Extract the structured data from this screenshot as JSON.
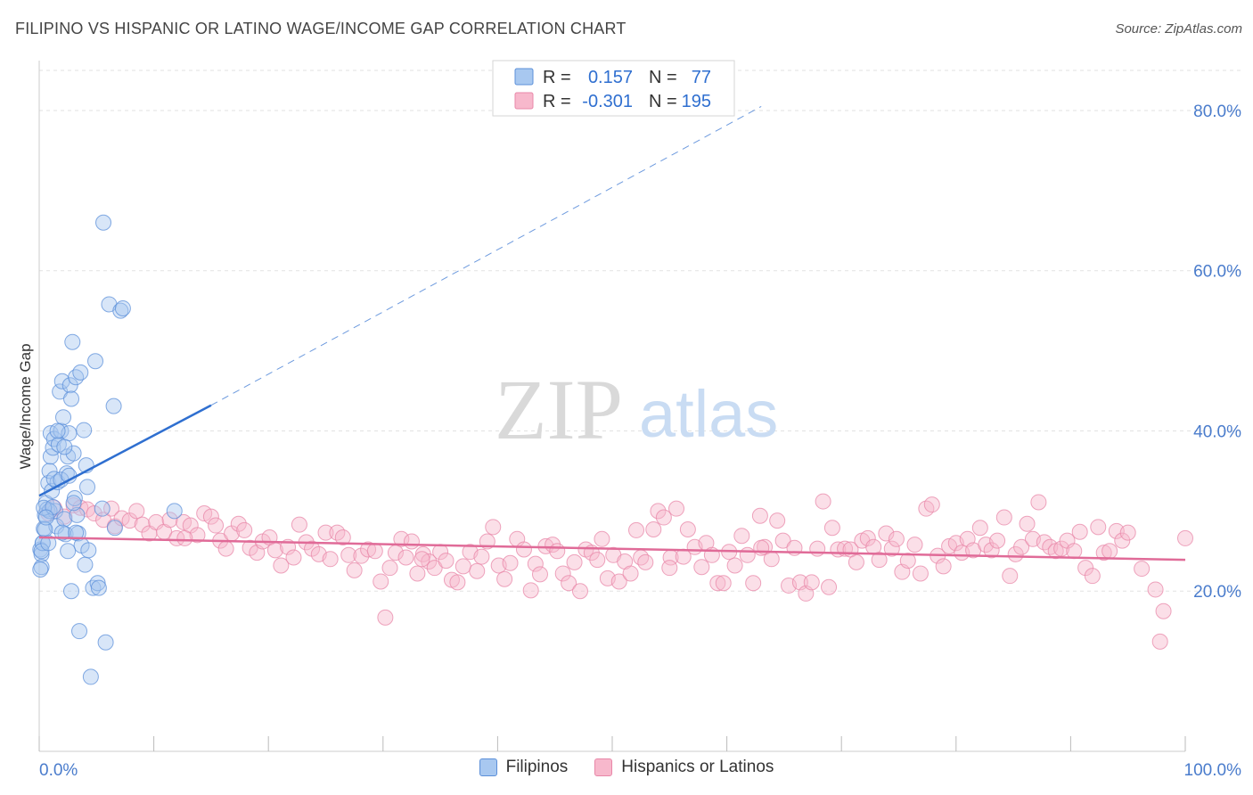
{
  "title": "FILIPINO VS HISPANIC OR LATINO WAGE/INCOME GAP CORRELATION CHART",
  "source": "Source: ZipAtlas.com",
  "watermark": {
    "zip": "ZIP",
    "atlas": "atlas"
  },
  "colors": {
    "blue_fill": "#a8c8f0",
    "blue_stroke": "#5b8fd9",
    "blue_line": "#2f6fd0",
    "pink_fill": "#f7b8cc",
    "pink_stroke": "#e887a8",
    "pink_line": "#e06b98",
    "axis_text": "#4a7ccc"
  },
  "chart_data": {
    "type": "scatter",
    "title": "FILIPINO VS HISPANIC OR LATINO WAGE/INCOME GAP CORRELATION CHART",
    "xlabel": "",
    "ylabel": "Wage/Income Gap",
    "xlim": [
      0,
      100
    ],
    "ylim": [
      0,
      85
    ],
    "x_tick_labels": [
      "0.0%",
      "100.0%"
    ],
    "y_ticks": [
      20,
      40,
      60,
      80
    ],
    "y_tick_labels": [
      "20.0%",
      "40.0%",
      "60.0%",
      "80.0%"
    ],
    "grid": true,
    "legend_placement": "top-center",
    "stats": [
      {
        "r_label": "R =",
        "r": "0.157",
        "n_label": "N =",
        "n": "77"
      },
      {
        "r_label": "R =",
        "r": "-0.301",
        "n_label": "N =",
        "n": "195"
      }
    ],
    "series": [
      {
        "name": "Filipinos",
        "color": "#5b8fd9",
        "trend": {
          "x0": 0,
          "y0": 31.9,
          "x1": 15,
          "y1": 43.2,
          "dashed_to_x": 63,
          "dashed_to_y": 80.5
        },
        "points": [
          [
            0.1,
            25.2
          ],
          [
            0.2,
            24.6
          ],
          [
            0.3,
            26.0
          ],
          [
            0.2,
            23.0
          ],
          [
            0.4,
            27.8
          ],
          [
            0.5,
            29.5
          ],
          [
            0.6,
            31.0
          ],
          [
            0.7,
            30.2
          ],
          [
            0.8,
            33.5
          ],
          [
            0.9,
            35.0
          ],
          [
            1.0,
            36.8
          ],
          [
            1.0,
            39.7
          ],
          [
            1.1,
            32.5
          ],
          [
            1.2,
            37.9
          ],
          [
            1.3,
            39.0
          ],
          [
            1.4,
            30.0
          ],
          [
            1.5,
            28.1
          ],
          [
            1.6,
            33.6
          ],
          [
            1.7,
            38.3
          ],
          [
            1.8,
            44.9
          ],
          [
            1.9,
            40.0
          ],
          [
            2.0,
            46.2
          ],
          [
            2.1,
            41.7
          ],
          [
            2.2,
            29.0
          ],
          [
            2.3,
            27.1
          ],
          [
            2.4,
            34.7
          ],
          [
            2.5,
            36.8
          ],
          [
            2.6,
            39.7
          ],
          [
            2.7,
            45.7
          ],
          [
            2.8,
            44.0
          ],
          [
            2.9,
            51.1
          ],
          [
            3.0,
            37.2
          ],
          [
            3.1,
            31.6
          ],
          [
            3.2,
            46.7
          ],
          [
            3.3,
            29.5
          ],
          [
            3.4,
            27.2
          ],
          [
            3.5,
            15.0
          ],
          [
            3.6,
            47.3
          ],
          [
            3.7,
            25.7
          ],
          [
            3.9,
            40.1
          ],
          [
            4.0,
            23.3
          ],
          [
            4.1,
            35.7
          ],
          [
            4.2,
            33.0
          ],
          [
            4.3,
            25.1
          ],
          [
            4.5,
            9.3
          ],
          [
            4.7,
            20.4
          ],
          [
            4.9,
            48.7
          ],
          [
            5.1,
            21.0
          ],
          [
            5.2,
            20.4
          ],
          [
            5.5,
            30.3
          ],
          [
            5.6,
            66.0
          ],
          [
            5.8,
            13.6
          ],
          [
            6.1,
            55.8
          ],
          [
            6.5,
            43.1
          ],
          [
            6.6,
            27.9
          ],
          [
            7.1,
            55.0
          ],
          [
            7.3,
            55.3
          ],
          [
            0.3,
            26.0
          ],
          [
            0.5,
            27.7
          ],
          [
            0.9,
            30.0
          ],
          [
            1.3,
            34.0
          ],
          [
            1.6,
            40.0
          ],
          [
            2.0,
            27.3
          ],
          [
            2.5,
            25.0
          ],
          [
            2.8,
            20.0
          ],
          [
            3.2,
            27.3
          ],
          [
            0.2,
            25.0
          ],
          [
            0.4,
            30.4
          ],
          [
            0.8,
            26.0
          ],
          [
            1.2,
            30.5
          ],
          [
            1.9,
            33.9
          ],
          [
            2.2,
            38.0
          ],
          [
            2.6,
            34.4
          ],
          [
            3.0,
            31.0
          ],
          [
            11.8,
            30.0
          ],
          [
            0.1,
            22.7
          ],
          [
            0.6,
            29.2
          ]
        ]
      },
      {
        "name": "Hispanics or Latinos",
        "color": "#e887a8",
        "trend": {
          "x0": 0,
          "y0": 26.7,
          "x1": 100,
          "y1": 23.9
        },
        "points": [
          [
            0.8,
            29.7
          ],
          [
            1.3,
            30.4
          ],
          [
            2.2,
            29.3
          ],
          [
            3.0,
            30.7
          ],
          [
            3.6,
            30.4
          ],
          [
            4.2,
            30.2
          ],
          [
            4.8,
            29.7
          ],
          [
            5.6,
            28.9
          ],
          [
            6.3,
            30.3
          ],
          [
            6.6,
            28.1
          ],
          [
            7.2,
            29.1
          ],
          [
            7.9,
            28.8
          ],
          [
            8.5,
            30.0
          ],
          [
            9.0,
            28.3
          ],
          [
            9.6,
            27.2
          ],
          [
            10.2,
            28.6
          ],
          [
            10.9,
            27.4
          ],
          [
            11.4,
            28.9
          ],
          [
            12.0,
            26.6
          ],
          [
            12.6,
            28.6
          ],
          [
            13.2,
            28.2
          ],
          [
            13.8,
            27.0
          ],
          [
            14.4,
            29.7
          ],
          [
            15.0,
            29.3
          ],
          [
            15.4,
            28.2
          ],
          [
            15.8,
            26.3
          ],
          [
            16.3,
            25.3
          ],
          [
            16.8,
            27.2
          ],
          [
            17.4,
            28.4
          ],
          [
            17.9,
            27.6
          ],
          [
            18.4,
            25.4
          ],
          [
            19.0,
            24.8
          ],
          [
            19.5,
            26.2
          ],
          [
            20.1,
            26.7
          ],
          [
            20.6,
            25.1
          ],
          [
            21.1,
            23.2
          ],
          [
            21.7,
            25.5
          ],
          [
            22.2,
            24.2
          ],
          [
            22.7,
            28.3
          ],
          [
            23.3,
            26.1
          ],
          [
            23.8,
            25.3
          ],
          [
            24.4,
            24.6
          ],
          [
            25.0,
            27.3
          ],
          [
            25.4,
            24.0
          ],
          [
            26.0,
            27.3
          ],
          [
            26.5,
            26.7
          ],
          [
            27.0,
            24.5
          ],
          [
            27.5,
            22.6
          ],
          [
            28.1,
            24.4
          ],
          [
            28.7,
            25.2
          ],
          [
            29.3,
            25.0
          ],
          [
            29.8,
            21.2
          ],
          [
            30.2,
            16.7
          ],
          [
            30.6,
            22.9
          ],
          [
            31.1,
            24.8
          ],
          [
            31.6,
            26.5
          ],
          [
            32.0,
            24.2
          ],
          [
            32.5,
            26.2
          ],
          [
            33.0,
            22.2
          ],
          [
            33.5,
            24.6
          ],
          [
            34.0,
            23.7
          ],
          [
            34.5,
            22.9
          ],
          [
            35.0,
            24.9
          ],
          [
            35.5,
            23.8
          ],
          [
            36.0,
            21.4
          ],
          [
            36.5,
            21.1
          ],
          [
            37.0,
            23.1
          ],
          [
            37.6,
            24.9
          ],
          [
            38.2,
            22.5
          ],
          [
            38.6,
            24.3
          ],
          [
            39.1,
            26.2
          ],
          [
            39.6,
            28.0
          ],
          [
            40.1,
            23.2
          ],
          [
            40.6,
            21.5
          ],
          [
            41.1,
            23.5
          ],
          [
            41.7,
            26.5
          ],
          [
            42.3,
            25.2
          ],
          [
            42.9,
            20.1
          ],
          [
            43.3,
            23.4
          ],
          [
            43.7,
            22.1
          ],
          [
            44.2,
            25.6
          ],
          [
            44.8,
            25.8
          ],
          [
            45.2,
            25.0
          ],
          [
            45.7,
            22.2
          ],
          [
            46.2,
            21.0
          ],
          [
            46.7,
            23.6
          ],
          [
            47.2,
            20.0
          ],
          [
            47.7,
            25.2
          ],
          [
            48.2,
            24.8
          ],
          [
            48.7,
            23.9
          ],
          [
            49.1,
            26.5
          ],
          [
            49.6,
            21.6
          ],
          [
            50.1,
            24.5
          ],
          [
            50.6,
            21.2
          ],
          [
            51.1,
            23.7
          ],
          [
            51.6,
            22.2
          ],
          [
            52.1,
            27.6
          ],
          [
            52.5,
            24.2
          ],
          [
            52.9,
            23.6
          ],
          [
            53.6,
            27.7
          ],
          [
            54.0,
            30.0
          ],
          [
            54.5,
            29.2
          ],
          [
            55.1,
            24.2
          ],
          [
            55.6,
            30.3
          ],
          [
            56.2,
            24.3
          ],
          [
            56.6,
            27.7
          ],
          [
            57.2,
            25.5
          ],
          [
            57.8,
            23.0
          ],
          [
            58.2,
            26.0
          ],
          [
            58.7,
            24.5
          ],
          [
            59.2,
            21.0
          ],
          [
            59.7,
            21.0
          ],
          [
            60.2,
            24.9
          ],
          [
            60.7,
            23.2
          ],
          [
            61.3,
            26.9
          ],
          [
            61.8,
            24.5
          ],
          [
            62.3,
            21.0
          ],
          [
            62.9,
            29.4
          ],
          [
            63.3,
            25.5
          ],
          [
            63.9,
            24.0
          ],
          [
            64.4,
            28.8
          ],
          [
            64.9,
            26.3
          ],
          [
            65.4,
            20.7
          ],
          [
            65.9,
            25.4
          ],
          [
            66.4,
            21.1
          ],
          [
            66.9,
            19.7
          ],
          [
            67.4,
            21.1
          ],
          [
            67.9,
            25.3
          ],
          [
            68.4,
            31.2
          ],
          [
            68.9,
            20.5
          ],
          [
            69.2,
            27.9
          ],
          [
            69.7,
            25.2
          ],
          [
            70.3,
            25.3
          ],
          [
            70.8,
            25.2
          ],
          [
            71.3,
            23.6
          ],
          [
            71.8,
            26.3
          ],
          [
            72.3,
            26.6
          ],
          [
            72.8,
            25.5
          ],
          [
            73.3,
            23.9
          ],
          [
            73.9,
            27.2
          ],
          [
            74.4,
            25.3
          ],
          [
            74.8,
            26.5
          ],
          [
            75.3,
            22.4
          ],
          [
            75.8,
            23.8
          ],
          [
            76.4,
            25.8
          ],
          [
            76.9,
            22.2
          ],
          [
            77.4,
            30.3
          ],
          [
            77.9,
            30.8
          ],
          [
            78.4,
            24.4
          ],
          [
            78.9,
            23.1
          ],
          [
            79.4,
            25.6
          ],
          [
            80.0,
            26.0
          ],
          [
            80.5,
            24.8
          ],
          [
            81.0,
            26.5
          ],
          [
            81.5,
            25.1
          ],
          [
            82.1,
            27.9
          ],
          [
            82.6,
            25.8
          ],
          [
            83.1,
            25.1
          ],
          [
            83.6,
            26.3
          ],
          [
            84.2,
            29.2
          ],
          [
            84.7,
            21.9
          ],
          [
            85.2,
            24.6
          ],
          [
            85.7,
            25.5
          ],
          [
            86.2,
            28.4
          ],
          [
            86.7,
            26.5
          ],
          [
            87.2,
            31.1
          ],
          [
            87.7,
            26.1
          ],
          [
            88.2,
            25.5
          ],
          [
            88.7,
            25.0
          ],
          [
            89.2,
            25.3
          ],
          [
            89.7,
            26.3
          ],
          [
            90.3,
            25.0
          ],
          [
            90.8,
            27.4
          ],
          [
            91.3,
            22.9
          ],
          [
            91.9,
            21.9
          ],
          [
            92.4,
            28.0
          ],
          [
            92.9,
            24.8
          ],
          [
            93.4,
            25.0
          ],
          [
            94.0,
            27.5
          ],
          [
            94.5,
            26.3
          ],
          [
            95.0,
            27.3
          ],
          [
            96.2,
            22.8
          ],
          [
            97.4,
            20.2
          ],
          [
            97.8,
            13.7
          ],
          [
            98.1,
            17.5
          ],
          [
            100.0,
            26.6
          ],
          [
            12.7,
            26.6
          ],
          [
            33.4,
            24.0
          ],
          [
            55.0,
            22.9
          ],
          [
            63.0,
            25.4
          ]
        ]
      }
    ]
  }
}
